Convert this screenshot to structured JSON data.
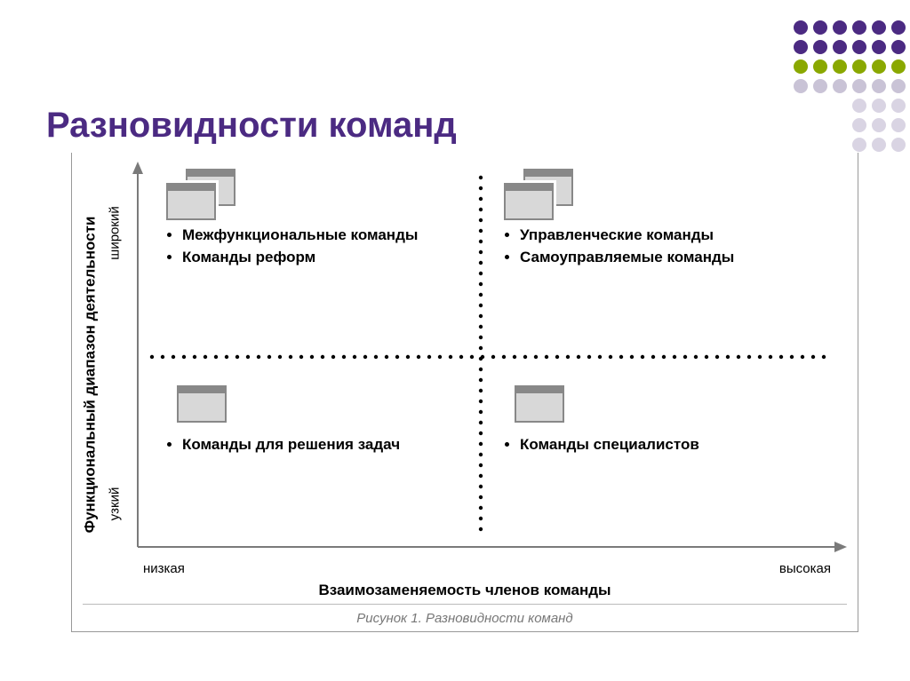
{
  "title": {
    "text": "Разновидности команд",
    "color": "#4b2a82",
    "fontsize_pt": 30
  },
  "decor_dots": {
    "colors": {
      "purple": "#4b2a82",
      "green": "#8aa800",
      "gray1": "#c9c3d6",
      "gray2": "#d9d4e3"
    },
    "grid": [
      [
        "purple",
        "purple",
        "purple",
        "purple",
        "purple",
        "purple"
      ],
      [
        "purple",
        "purple",
        "purple",
        "purple",
        "purple",
        "purple"
      ],
      [
        "green",
        "green",
        "green",
        "green",
        "green",
        "green"
      ],
      [
        "gray1",
        "gray1",
        "gray1",
        "gray1",
        "gray1",
        "gray1"
      ],
      [
        "",
        "",
        "",
        "gray2",
        "gray2",
        "gray2"
      ],
      [
        "",
        "",
        "",
        "gray2",
        "gray2",
        "gray2"
      ],
      [
        "",
        "",
        "",
        "gray2",
        "gray2",
        "gray2"
      ]
    ]
  },
  "axes": {
    "y_label": "Функциональный диапазон деятельности",
    "y_tick_high": "широкий",
    "y_tick_low": "узкий",
    "x_label": "Взаимозаменяемость членов команды",
    "x_tick_low": "низкая",
    "x_tick_high": "высокая",
    "axis_color": "#7a7a7a",
    "divider_color": "#000000",
    "divider_dot_spacing": 12,
    "divider_dot_radius": 2.2
  },
  "quadrants": {
    "top_left": {
      "icon_count": 2,
      "items": [
        "Межфункциональные команды",
        "Команды реформ"
      ]
    },
    "top_right": {
      "icon_count": 2,
      "items": [
        "Управленческие команды",
        "Самоуправляемые команды"
      ]
    },
    "bottom_left": {
      "icon_count": 1,
      "items": [
        "Команды для решения задач"
      ]
    },
    "bottom_right": {
      "icon_count": 1,
      "items": [
        "Команды специалистов"
      ]
    }
  },
  "caption": "Рисунок 1. Разновидности команд",
  "icon_style": {
    "fill": "#d8d8d8",
    "border": "#888888",
    "w": 56,
    "h": 42
  }
}
